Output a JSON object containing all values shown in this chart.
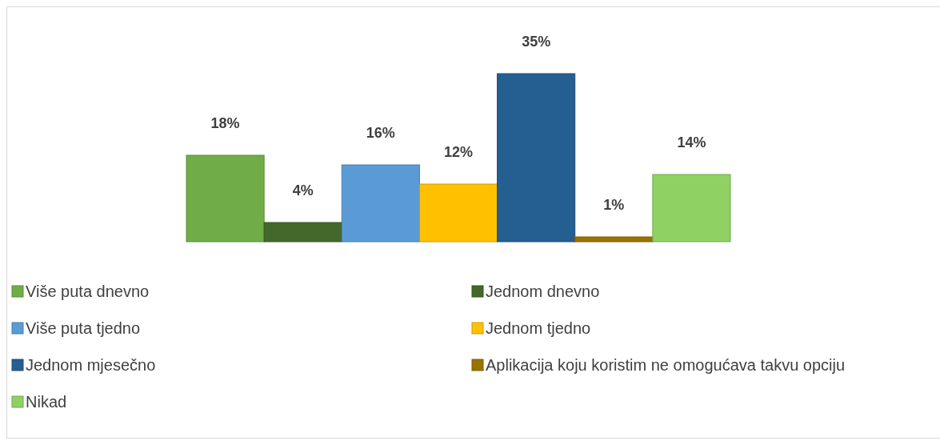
{
  "chart_data": {
    "type": "bar",
    "categories": [
      null
    ],
    "legend": "bottom",
    "series": [
      {
        "name": "Više puta dnevno",
        "color": "#70ad47",
        "values": [
          18
        ],
        "value_labels": [
          "18%"
        ]
      },
      {
        "name": "Jednom dnevno",
        "color": "#43682b",
        "values": [
          4
        ],
        "value_labels": [
          "4%"
        ]
      },
      {
        "name": "Više puta tjedno",
        "color": "#5b9bd5",
        "values": [
          16
        ],
        "value_labels": [
          "16%"
        ]
      },
      {
        "name": "Jednom tjedno",
        "color": "#ffc000",
        "values": [
          12
        ],
        "value_labels": [
          "12%"
        ]
      },
      {
        "name": "Jednom mjesečno",
        "color": "#255e91",
        "values": [
          35
        ],
        "value_labels": [
          "35%"
        ]
      },
      {
        "name": "Aplikacija koju koristim ne omogućava takvu opciju",
        "color": "#997300",
        "values": [
          1
        ],
        "value_labels": [
          "1%"
        ]
      },
      {
        "name": "Nikad",
        "color": "#8fd163",
        "values": [
          14
        ],
        "value_labels": [
          "14%"
        ]
      }
    ]
  }
}
